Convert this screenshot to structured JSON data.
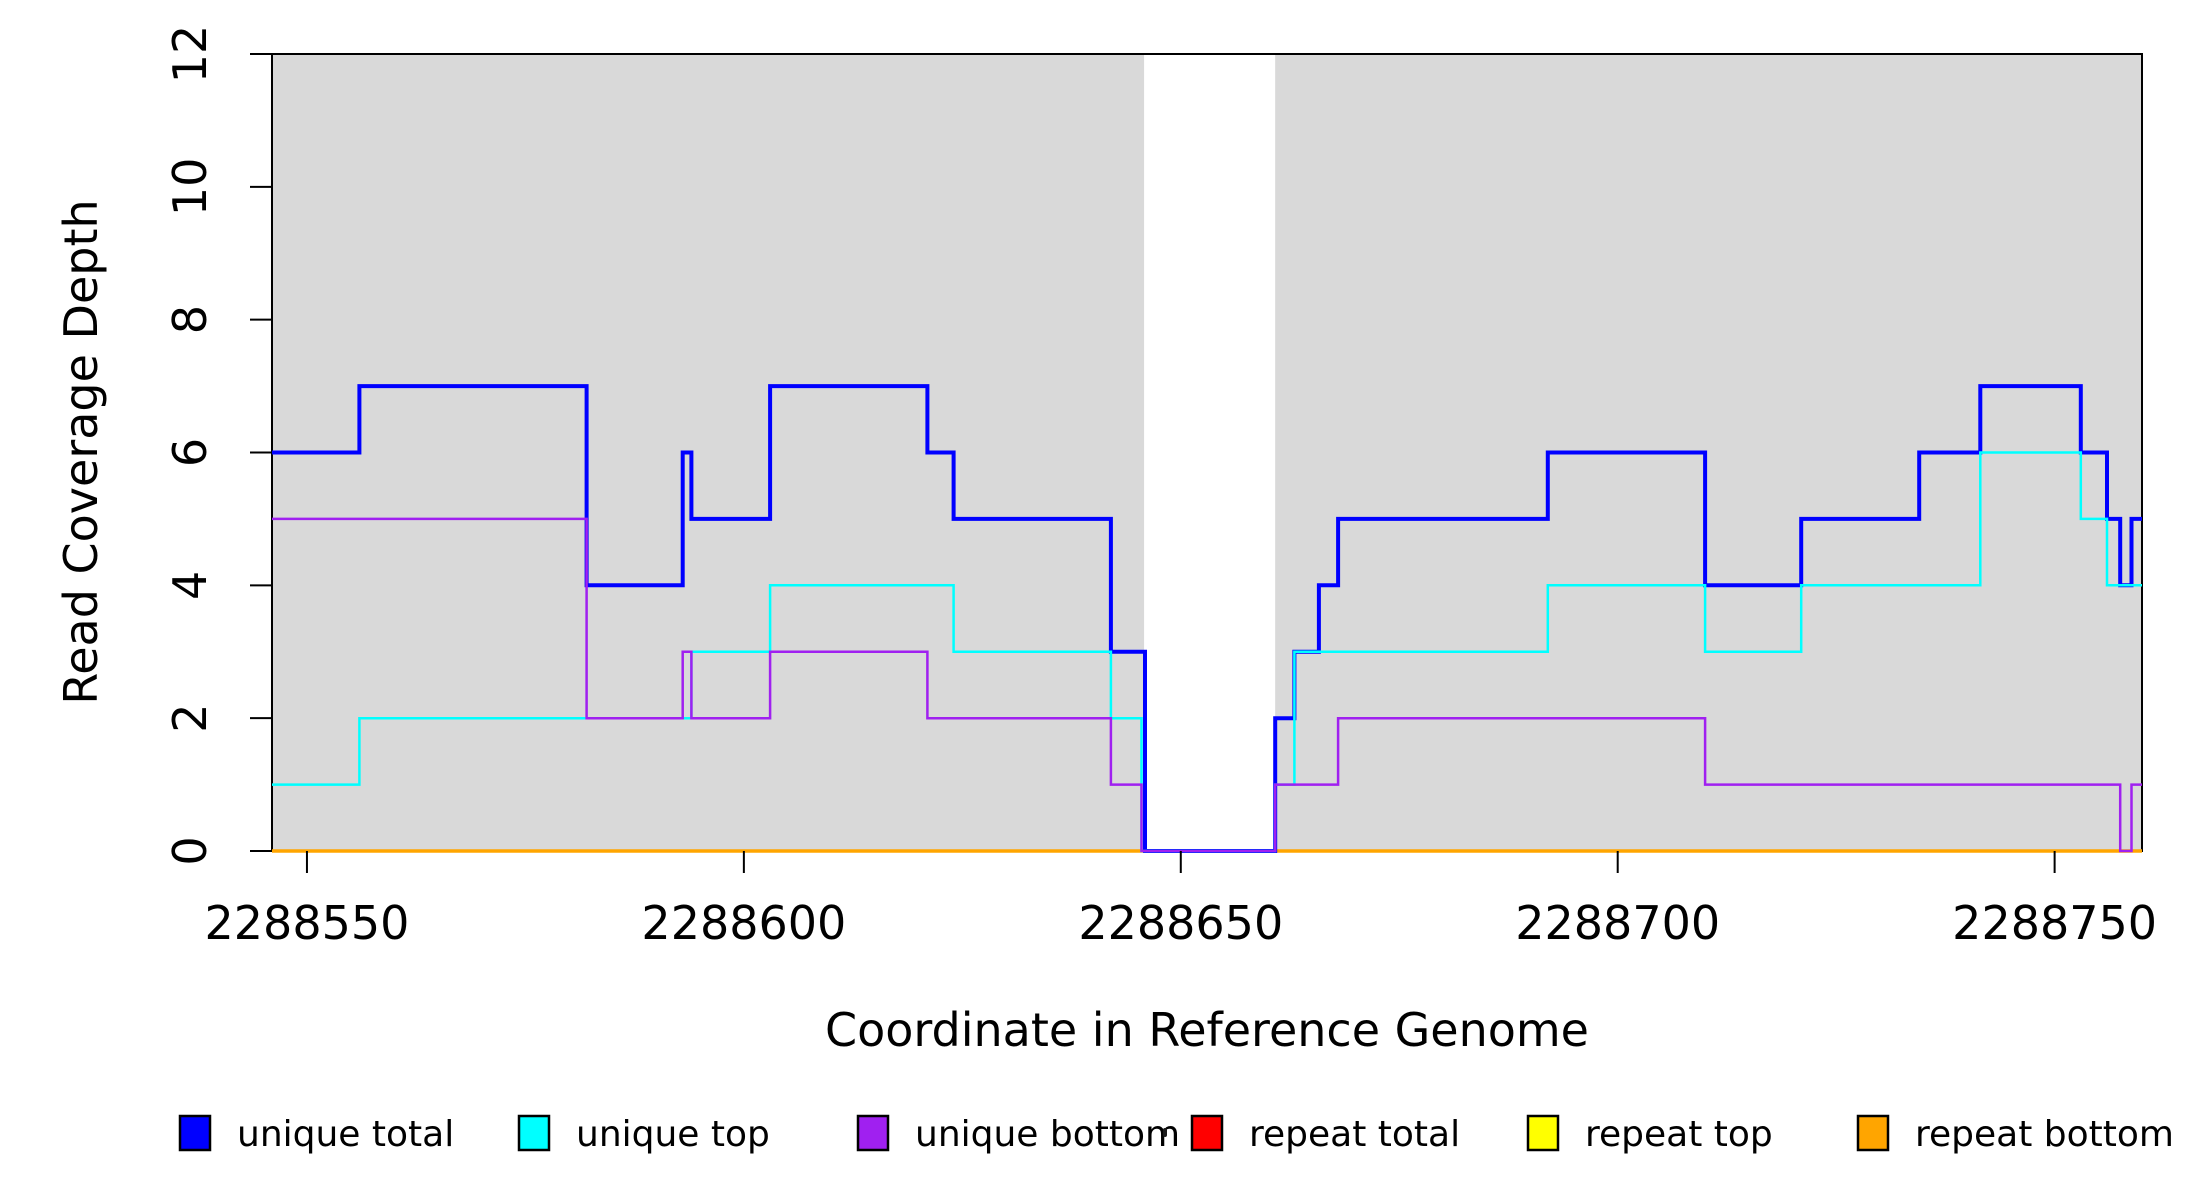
{
  "chart_data": {
    "type": "line",
    "subtype": "step-coverage",
    "title": "",
    "xlabel": "Coordinate in Reference Genome",
    "ylabel": "Read Coverage Depth",
    "xlim": [
      2288546,
      2288760
    ],
    "ylim": [
      0,
      12
    ],
    "x_ticks": [
      2288550,
      2288600,
      2288650,
      2288700,
      2288750
    ],
    "y_ticks": [
      0,
      2,
      4,
      6,
      8,
      10,
      12
    ],
    "grid": false,
    "background_color": "#ffffff",
    "shade_color": "#d9d9d9",
    "shaded_regions": [
      {
        "start": 2288546,
        "end": 2288645.8
      },
      {
        "start": 2288660.8,
        "end": 2288760
      }
    ],
    "series": [
      {
        "name": "repeat total",
        "color": "#ff0000",
        "line_width": 2.5,
        "steps": [
          [
            2288546,
            0
          ]
        ],
        "end_x": 2288760
      },
      {
        "name": "repeat top",
        "color": "#ffff00",
        "line_width": 2.5,
        "steps": [
          [
            2288546,
            0
          ]
        ],
        "end_x": 2288760
      },
      {
        "name": "repeat bottom",
        "color": "#ffa500",
        "line_width": 3.5,
        "steps": [
          [
            2288546,
            0
          ]
        ],
        "end_x": 2288760
      },
      {
        "name": "unique total",
        "color": "#0000ff",
        "line_width": 4,
        "steps": [
          [
            2288546,
            6
          ],
          [
            2288556,
            7
          ],
          [
            2288582,
            4
          ],
          [
            2288593,
            6
          ],
          [
            2288594,
            5
          ],
          [
            2288603,
            7
          ],
          [
            2288621,
            6
          ],
          [
            2288624,
            5
          ],
          [
            2288642,
            3
          ],
          [
            2288645.9,
            0
          ],
          [
            2288660.8,
            2
          ],
          [
            2288663,
            3
          ],
          [
            2288665.8,
            4
          ],
          [
            2288668,
            5
          ],
          [
            2288692,
            6
          ],
          [
            2288710,
            4
          ],
          [
            2288721,
            5
          ],
          [
            2288734.5,
            6
          ],
          [
            2288741.5,
            7
          ],
          [
            2288753,
            6
          ],
          [
            2288756,
            5
          ],
          [
            2288757.5,
            4
          ],
          [
            2288758.8,
            5
          ]
        ],
        "end_x": 2288760
      },
      {
        "name": "unique top",
        "color": "#00ffff",
        "line_width": 2.5,
        "steps": [
          [
            2288546,
            1
          ],
          [
            2288556,
            2
          ],
          [
            2288594,
            3
          ],
          [
            2288603,
            4
          ],
          [
            2288624,
            3
          ],
          [
            2288642,
            2
          ],
          [
            2288645.5,
            0
          ],
          [
            2288660.8,
            1
          ],
          [
            2288663,
            3
          ],
          [
            2288692,
            4
          ],
          [
            2288710,
            3
          ],
          [
            2288721,
            4
          ],
          [
            2288741.5,
            6
          ],
          [
            2288753,
            5
          ],
          [
            2288756,
            4
          ]
        ],
        "end_x": 2288760
      },
      {
        "name": "unique bottom",
        "color": "#a020f0",
        "line_width": 2.5,
        "steps": [
          [
            2288546,
            5
          ],
          [
            2288582,
            2
          ],
          [
            2288593,
            3
          ],
          [
            2288594,
            2
          ],
          [
            2288603,
            3
          ],
          [
            2288621,
            2
          ],
          [
            2288642,
            1
          ],
          [
            2288645.5,
            0
          ],
          [
            2288660.8,
            1
          ],
          [
            2288668,
            2
          ],
          [
            2288710,
            1
          ],
          [
            2288757.5,
            0
          ],
          [
            2288758.8,
            1
          ]
        ],
        "end_x": 2288760
      }
    ],
    "legend": {
      "position": "bottom",
      "items": [
        {
          "label": "unique total",
          "color": "#0000ff"
        },
        {
          "label": "unique top",
          "color": "#00ffff"
        },
        {
          "label": "unique bottom",
          "color": "#a020f0"
        },
        {
          "label": "repeat total",
          "color": "#ff0000"
        },
        {
          "label": "repeat top",
          "color": "#ffff00"
        },
        {
          "label": "repeat bottom",
          "color": "#ffa500"
        }
      ]
    }
  }
}
